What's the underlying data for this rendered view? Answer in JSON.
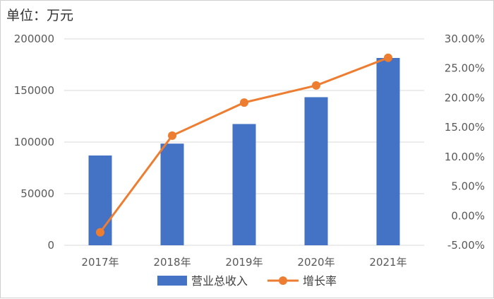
{
  "unit_label": "单位：万元",
  "colors": {
    "bar": "#4472C4",
    "line": "#ED7D31",
    "grid": "#d9d9d9"
  },
  "chart_data": {
    "type": "bar+line",
    "categories": [
      "2017年",
      "2018年",
      "2019年",
      "2020年",
      "2021年"
    ],
    "series": [
      {
        "name": "营业总收入",
        "type": "bar",
        "axis": "left",
        "values": [
          87000,
          98500,
          117500,
          143500,
          181500
        ]
      },
      {
        "name": "增长率",
        "type": "line",
        "axis": "right",
        "values": [
          -2.8,
          13.6,
          19.2,
          22.1,
          26.8
        ]
      }
    ],
    "left_axis": {
      "min": 0,
      "max": 200000,
      "ticks": [
        "0",
        "50000",
        "100000",
        "150000",
        "200000"
      ]
    },
    "right_axis": {
      "min": -5,
      "max": 30,
      "ticks": [
        "-5.00%",
        "0.00%",
        "5.00%",
        "10.00%",
        "15.00%",
        "20.00%",
        "25.00%",
        "30.00%"
      ]
    },
    "grid": true,
    "legend": "bottom"
  }
}
